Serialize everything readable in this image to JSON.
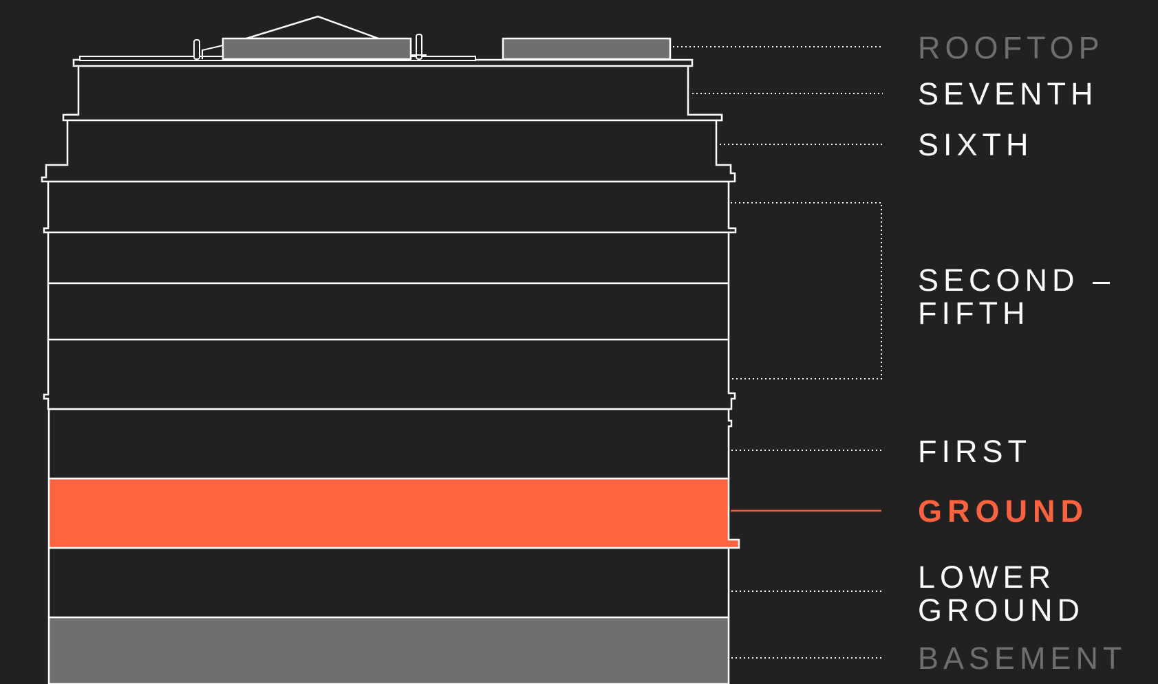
{
  "diagram": {
    "colors": {
      "background": "#222021",
      "outline": "#ffffff",
      "highlight": "#ff6340",
      "muted": "#706e70",
      "muted_text": "#706e70"
    },
    "active_floor": "ground",
    "floors": [
      {
        "id": "rooftop",
        "lines": [
          "ROOFTOP"
        ],
        "state": "dim"
      },
      {
        "id": "seventh",
        "lines": [
          "SEVENTH"
        ],
        "state": "light"
      },
      {
        "id": "sixth",
        "lines": [
          "SIXTH"
        ],
        "state": "light"
      },
      {
        "id": "second-fifth",
        "lines": [
          "SECOND –",
          "FIFTH"
        ],
        "state": "light"
      },
      {
        "id": "first",
        "lines": [
          "FIRST"
        ],
        "state": "light"
      },
      {
        "id": "ground",
        "lines": [
          "GROUND"
        ],
        "state": "active"
      },
      {
        "id": "lower-ground",
        "lines": [
          "LOWER",
          "GROUND"
        ],
        "state": "light"
      },
      {
        "id": "basement",
        "lines": [
          "BASEMENT"
        ],
        "state": "dim"
      }
    ]
  }
}
